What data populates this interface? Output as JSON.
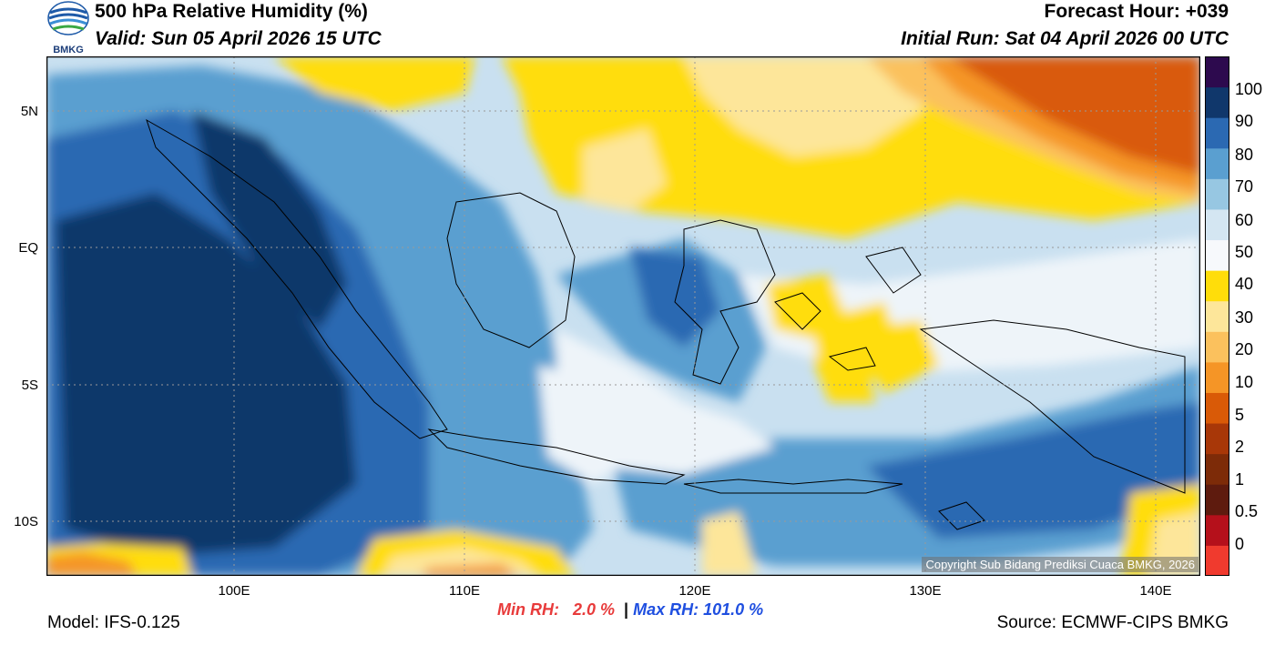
{
  "header": {
    "title": "500 hPa Relative Humidity (%)",
    "valid": "Valid: Sun 05 April 2026 15 UTC",
    "forecast_hour": "Forecast Hour: +039",
    "initial_run": "Initial Run: Sat 04 April 2026 00 UTC",
    "logo_text": "BMKG"
  },
  "map": {
    "lat_labels": [
      "5N",
      "EQ",
      "5S",
      "10S"
    ],
    "lon_labels": [
      "100E",
      "110E",
      "120E",
      "130E",
      "140E"
    ],
    "copyright": "Copyright Sub Bidang Prediksi Cuaca BMKG, 2026"
  },
  "colorbar": {
    "labels": [
      "100",
      "90",
      "80",
      "70",
      "60",
      "50",
      "40",
      "30",
      "20",
      "10",
      "5",
      "2",
      "1",
      "0.5",
      "0"
    ],
    "colors": [
      "#f03a2e",
      "#b5101b",
      "#5e1b0e",
      "#7d2b08",
      "#a83708",
      "#d95a07",
      "#f59526",
      "#fbc15d",
      "#fde69a",
      "#ffdd0a",
      "#f7f9fc",
      "#d4e6f2",
      "#97c7e2",
      "#5a9fd0",
      "#2b69b2",
      "#10376b",
      "#2d0a4e"
    ]
  },
  "stats": {
    "min_label": "Min RH:",
    "min_value": "2.0 %",
    "separator": "|",
    "max_label": "Max RH:",
    "max_value": "101.0 %"
  },
  "footer": {
    "model": "Model: IFS-0.125",
    "source": "Source: ECMWF-CIPS BMKG"
  }
}
